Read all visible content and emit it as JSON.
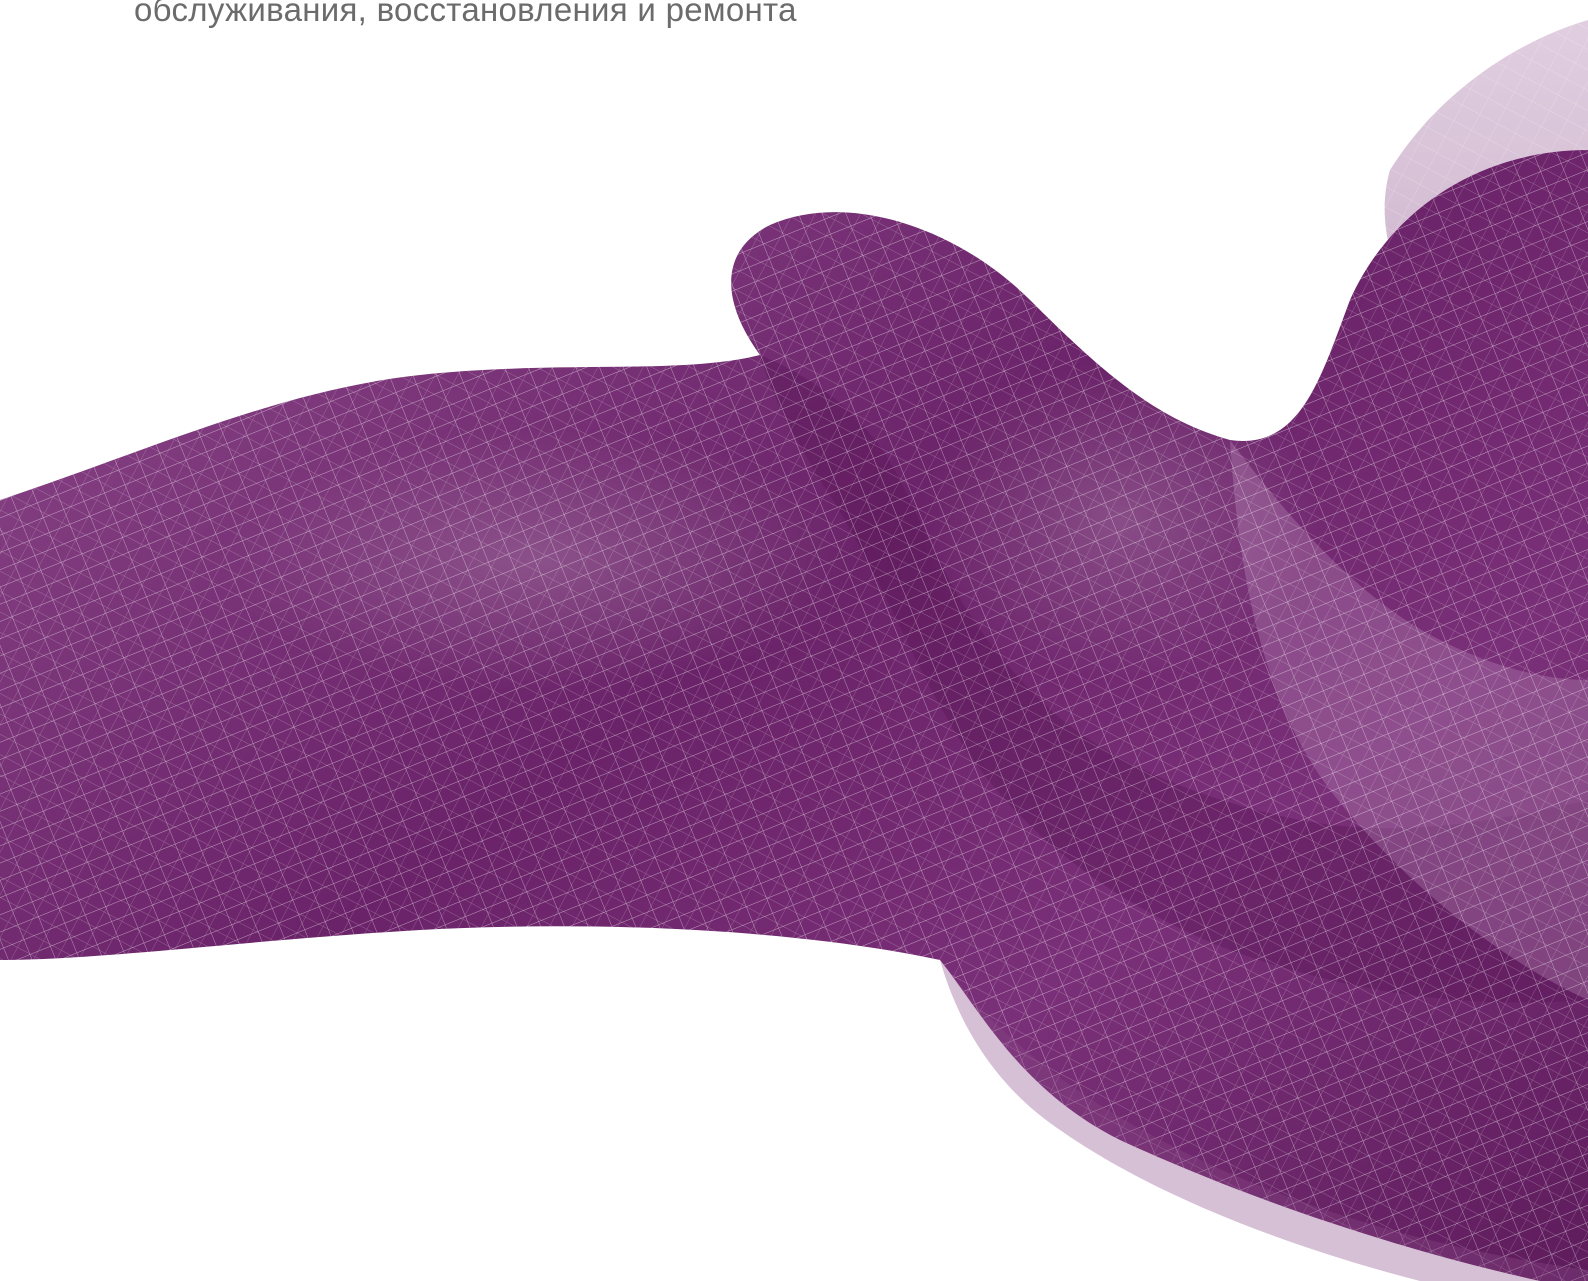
{
  "header": {
    "subtitle_line": "обслуживания, восстановления и ремонта"
  },
  "artwork": {
    "subject": "purple-silk-ribbon",
    "colors": {
      "primary": "#7a2e78",
      "dark": "#5c1a5a",
      "light": "#a878a6",
      "mesh": "#ffffff"
    }
  }
}
